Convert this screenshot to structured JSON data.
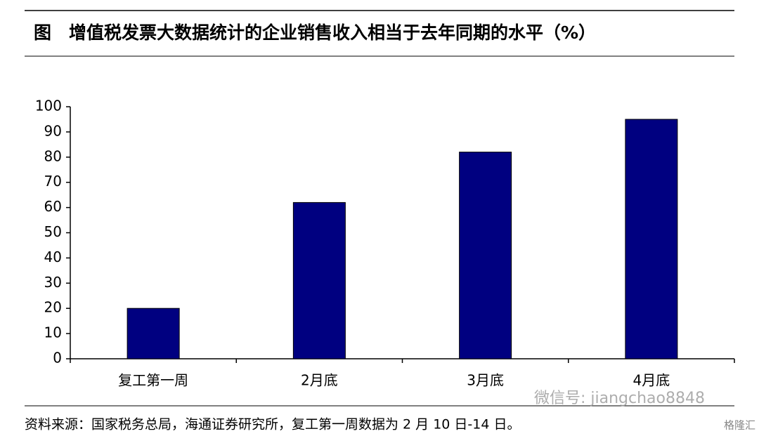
{
  "chart_data": {
    "type": "bar",
    "title": "图　增值税发票大数据统计的企业销售收入相当于去年同期的水平（%）",
    "categories": [
      "复工第一周",
      "2月底",
      "3月底",
      "4月底"
    ],
    "values": [
      20,
      62,
      82,
      95
    ],
    "color": "#000080",
    "ylim": [
      0,
      100
    ],
    "yticks": [
      0,
      10,
      20,
      30,
      40,
      50,
      60,
      70,
      80,
      90,
      100
    ],
    "grid": false,
    "source": "资料来源：国家税务总局，海通证券研究所，复工第一周数据为 2 月 10 日-14 日。",
    "watermarks": [
      "微信号: jiangchao8848",
      "格隆汇"
    ]
  }
}
